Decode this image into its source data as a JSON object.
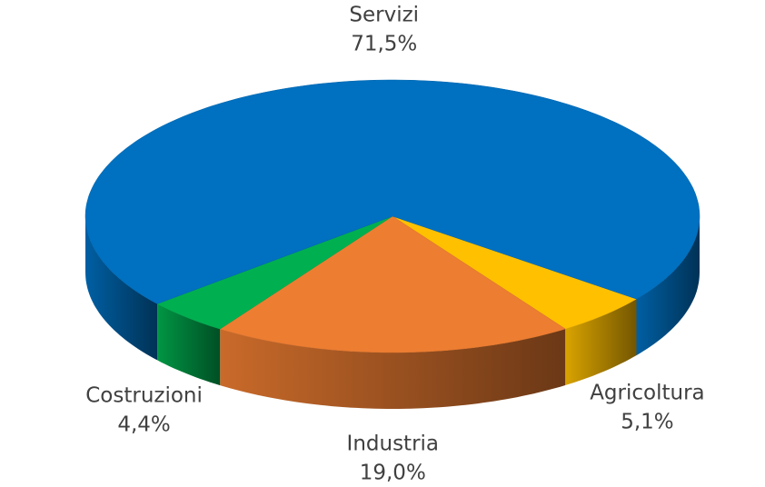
{
  "chart_data": {
    "type": "pie3d",
    "categories": [
      "Agricoltura",
      "Industria",
      "Costruzioni",
      "Servizi"
    ],
    "values": [
      5.1,
      19.0,
      4.4,
      71.5
    ],
    "value_labels": [
      "5,1%",
      "19,0%",
      "4,4%",
      "71,5%"
    ],
    "colors": [
      "#ffc000",
      "#ed7d31",
      "#00b050",
      "#0070c0"
    ]
  }
}
